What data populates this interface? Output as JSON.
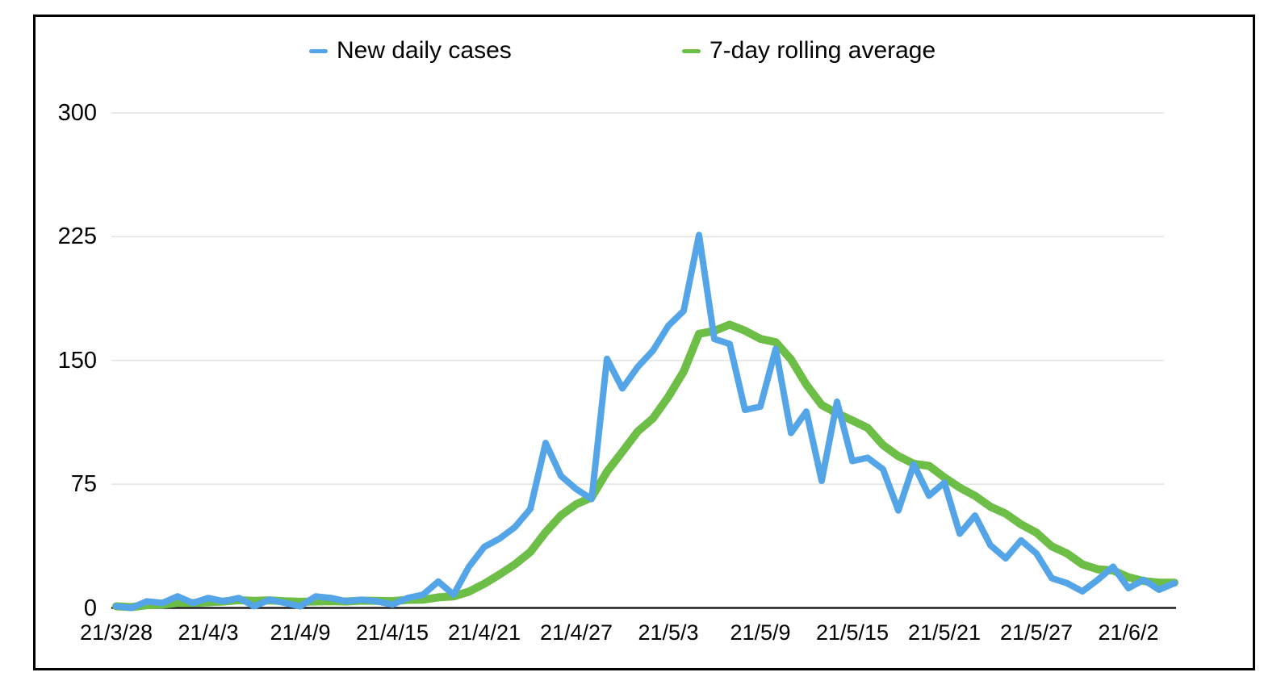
{
  "legend": {
    "items": [
      {
        "label": "New daily cases",
        "color": "#54a5e8"
      },
      {
        "label": "7-day rolling average",
        "color": "#6dbe46"
      }
    ]
  },
  "colors": {
    "background": "#ffffff",
    "frame_border": "#000000",
    "gridline": "#e3e3e3",
    "axis": "#1b1b1b",
    "text": "#000000"
  },
  "chart_data": {
    "type": "line",
    "title": "",
    "xlabel": "",
    "ylabel": "",
    "ylim": [
      0,
      300
    ],
    "y_ticks": [
      0,
      75,
      150,
      225,
      300
    ],
    "grid": "horizontal",
    "legend_position": "top",
    "x_tick_labels": [
      "21/3/28",
      "21/4/3",
      "21/4/9",
      "21/4/15",
      "21/4/21",
      "21/4/27",
      "21/5/3",
      "21/5/9",
      "21/5/15",
      "21/5/21",
      "21/5/27",
      "21/6/2"
    ],
    "x_tick_every_days": 6,
    "x": [
      "21/3/28",
      "21/3/29",
      "21/3/30",
      "21/3/31",
      "21/4/1",
      "21/4/2",
      "21/4/3",
      "21/4/4",
      "21/4/5",
      "21/4/6",
      "21/4/7",
      "21/4/8",
      "21/4/9",
      "21/4/10",
      "21/4/11",
      "21/4/12",
      "21/4/13",
      "21/4/14",
      "21/4/15",
      "21/4/16",
      "21/4/17",
      "21/4/18",
      "21/4/19",
      "21/4/20",
      "21/4/21",
      "21/4/22",
      "21/4/23",
      "21/4/24",
      "21/4/25",
      "21/4/26",
      "21/4/27",
      "21/4/28",
      "21/4/29",
      "21/4/30",
      "21/5/1",
      "21/5/2",
      "21/5/3",
      "21/5/4",
      "21/5/5",
      "21/5/6",
      "21/5/7",
      "21/5/8",
      "21/5/9",
      "21/5/10",
      "21/5/11",
      "21/5/12",
      "21/5/13",
      "21/5/14",
      "21/5/15",
      "21/5/16",
      "21/5/17",
      "21/5/18",
      "21/5/19",
      "21/5/20",
      "21/5/21",
      "21/5/22",
      "21/5/23",
      "21/5/24",
      "21/5/25",
      "21/5/26",
      "21/5/27",
      "21/5/28",
      "21/5/29",
      "21/5/30",
      "21/5/31",
      "21/6/1",
      "21/6/2",
      "21/6/3",
      "21/6/4",
      "21/6/5"
    ],
    "series": [
      {
        "name": "New daily cases",
        "color": "#54a5e8",
        "stroke_width": 8,
        "values": [
          1,
          0,
          4,
          3,
          7,
          3,
          6,
          4,
          6,
          1,
          5,
          3,
          1,
          7,
          6,
          4,
          5,
          4,
          2,
          6,
          8,
          16,
          8,
          25,
          37,
          42,
          49,
          60,
          100,
          80,
          72,
          66,
          151,
          133,
          146,
          156,
          171,
          180,
          226,
          163,
          160,
          120,
          122,
          157,
          106,
          119,
          77,
          125,
          89,
          91,
          84,
          59,
          87,
          68,
          76,
          45,
          56,
          38,
          30,
          41,
          33,
          18,
          15,
          10,
          17,
          25,
          12,
          17,
          11,
          15
        ]
      },
      {
        "name": "7-day rolling average",
        "color": "#6dbe46",
        "stroke_width": 10,
        "values": [
          1,
          0.5,
          1.7,
          2,
          3,
          3,
          3.4,
          3.9,
          4.7,
          4.3,
          4.6,
          4,
          3.7,
          3.9,
          4.1,
          3.9,
          4.4,
          4.3,
          4.1,
          4.9,
          5,
          6.4,
          7,
          9.9,
          14.6,
          20.3,
          26.4,
          33.9,
          45.9,
          56.1,
          62.9,
          67,
          82.6,
          94.6,
          106.9,
          114.9,
          127.9,
          143.3,
          166.1,
          167.9,
          171.7,
          168,
          163.1,
          161.1,
          150.6,
          135.3,
          123,
          118,
          113.6,
          109.1,
          98.7,
          92,
          87.4,
          86.1,
          79.1,
          72.9,
          67.9,
          61.3,
          57.1,
          50.6,
          45.6,
          37.3,
          33,
          26.4,
          23.4,
          22.7,
          18.6,
          16.3,
          15.3,
          15.3
        ]
      }
    ]
  }
}
